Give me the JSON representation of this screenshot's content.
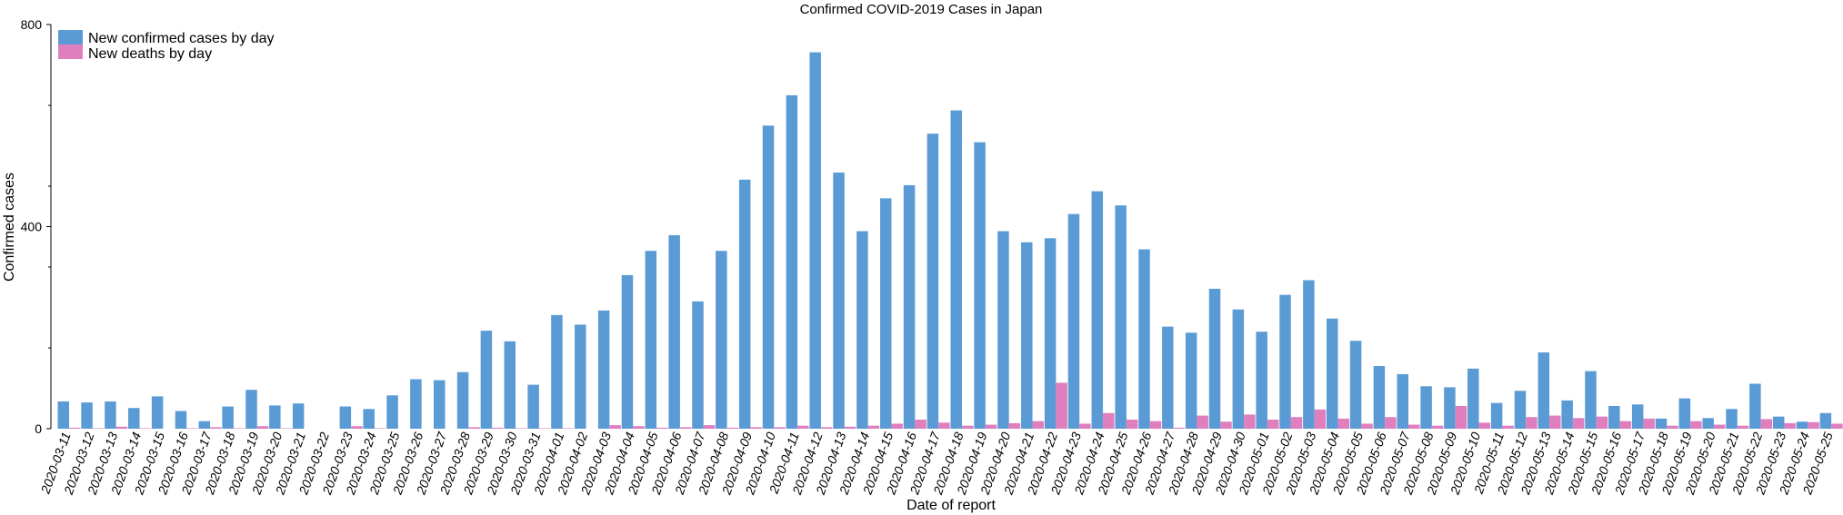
{
  "chart_data": {
    "type": "bar",
    "title": "Confirmed COVID-2019 Cases in Japan",
    "xlabel": "Date of report",
    "ylabel": "Confirmed cases",
    "ylim": [
      0,
      800
    ],
    "yticks": [
      0,
      400,
      800
    ],
    "grid": false,
    "legend_position": "top-left",
    "categories": [
      "2020-03-11",
      "2020-03-12",
      "2020-03-13",
      "2020-03-14",
      "2020-03-15",
      "2020-03-16",
      "2020-03-17",
      "2020-03-18",
      "2020-03-19",
      "2020-03-20",
      "2020-03-21",
      "2020-03-22",
      "2020-03-23",
      "2020-03-24",
      "2020-03-25",
      "2020-03-26",
      "2020-03-27",
      "2020-03-28",
      "2020-03-29",
      "2020-03-30",
      "2020-03-31",
      "2020-04-01",
      "2020-04-02",
      "2020-04-03",
      "2020-04-04",
      "2020-04-05",
      "2020-04-06",
      "2020-04-07",
      "2020-04-08",
      "2020-04-09",
      "2020-04-10",
      "2020-04-11",
      "2020-04-12",
      "2020-04-13",
      "2020-04-14",
      "2020-04-15",
      "2020-04-16",
      "2020-04-17",
      "2020-04-18",
      "2020-04-19",
      "2020-04-20",
      "2020-04-21",
      "2020-04-22",
      "2020-04-23",
      "2020-04-24",
      "2020-04-25",
      "2020-04-26",
      "2020-04-27",
      "2020-04-28",
      "2020-04-29",
      "2020-04-30",
      "2020-05-01",
      "2020-05-02",
      "2020-05-03",
      "2020-05-04",
      "2020-05-05",
      "2020-05-06",
      "2020-05-07",
      "2020-05-08",
      "2020-05-09",
      "2020-05-10",
      "2020-05-11",
      "2020-05-12",
      "2020-05-13",
      "2020-05-14",
      "2020-05-15",
      "2020-05-16",
      "2020-05-17",
      "2020-05-18",
      "2020-05-19",
      "2020-05-20",
      "2020-05-21",
      "2020-05-22",
      "2020-05-23",
      "2020-05-24",
      "2020-05-25"
    ],
    "series": [
      {
        "name": "New confirmed cases by day",
        "color": "#5b9bd5",
        "values": [
          54,
          52,
          54,
          41,
          64,
          35,
          15,
          44,
          77,
          46,
          50,
          0,
          44,
          39,
          66,
          98,
          96,
          112,
          194,
          173,
          87,
          225,
          206,
          234,
          304,
          352,
          383,
          252,
          352,
          493,
          600,
          660,
          745,
          507,
          391,
          456,
          482,
          584,
          630,
          567,
          391,
          369,
          377,
          425,
          470,
          442,
          355,
          202,
          190,
          277,
          236,
          192,
          265,
          294,
          218,
          174,
          124,
          108,
          84,
          82,
          119,
          51,
          75,
          151,
          56,
          114,
          45,
          48,
          20,
          60,
          21,
          39,
          89,
          24,
          14,
          31
        ]
      },
      {
        "name": "New deaths by day",
        "color": "#e07fbe",
        "values": [
          2,
          1,
          4,
          1,
          0,
          1,
          3,
          1,
          5,
          1,
          0,
          0,
          5,
          1,
          0,
          0,
          0,
          3,
          2,
          1,
          1,
          1,
          0,
          7,
          5,
          2,
          3,
          7,
          2,
          3,
          3,
          6,
          3,
          4,
          6,
          10,
          18,
          12,
          6,
          8,
          11,
          15,
          91,
          10,
          31,
          18,
          15,
          2,
          26,
          14,
          28,
          18,
          23,
          38,
          20,
          10,
          23,
          8,
          6,
          45,
          12,
          6,
          23,
          26,
          21,
          24,
          15,
          20,
          6,
          15,
          8,
          6,
          19,
          11,
          13,
          10
        ]
      }
    ]
  }
}
